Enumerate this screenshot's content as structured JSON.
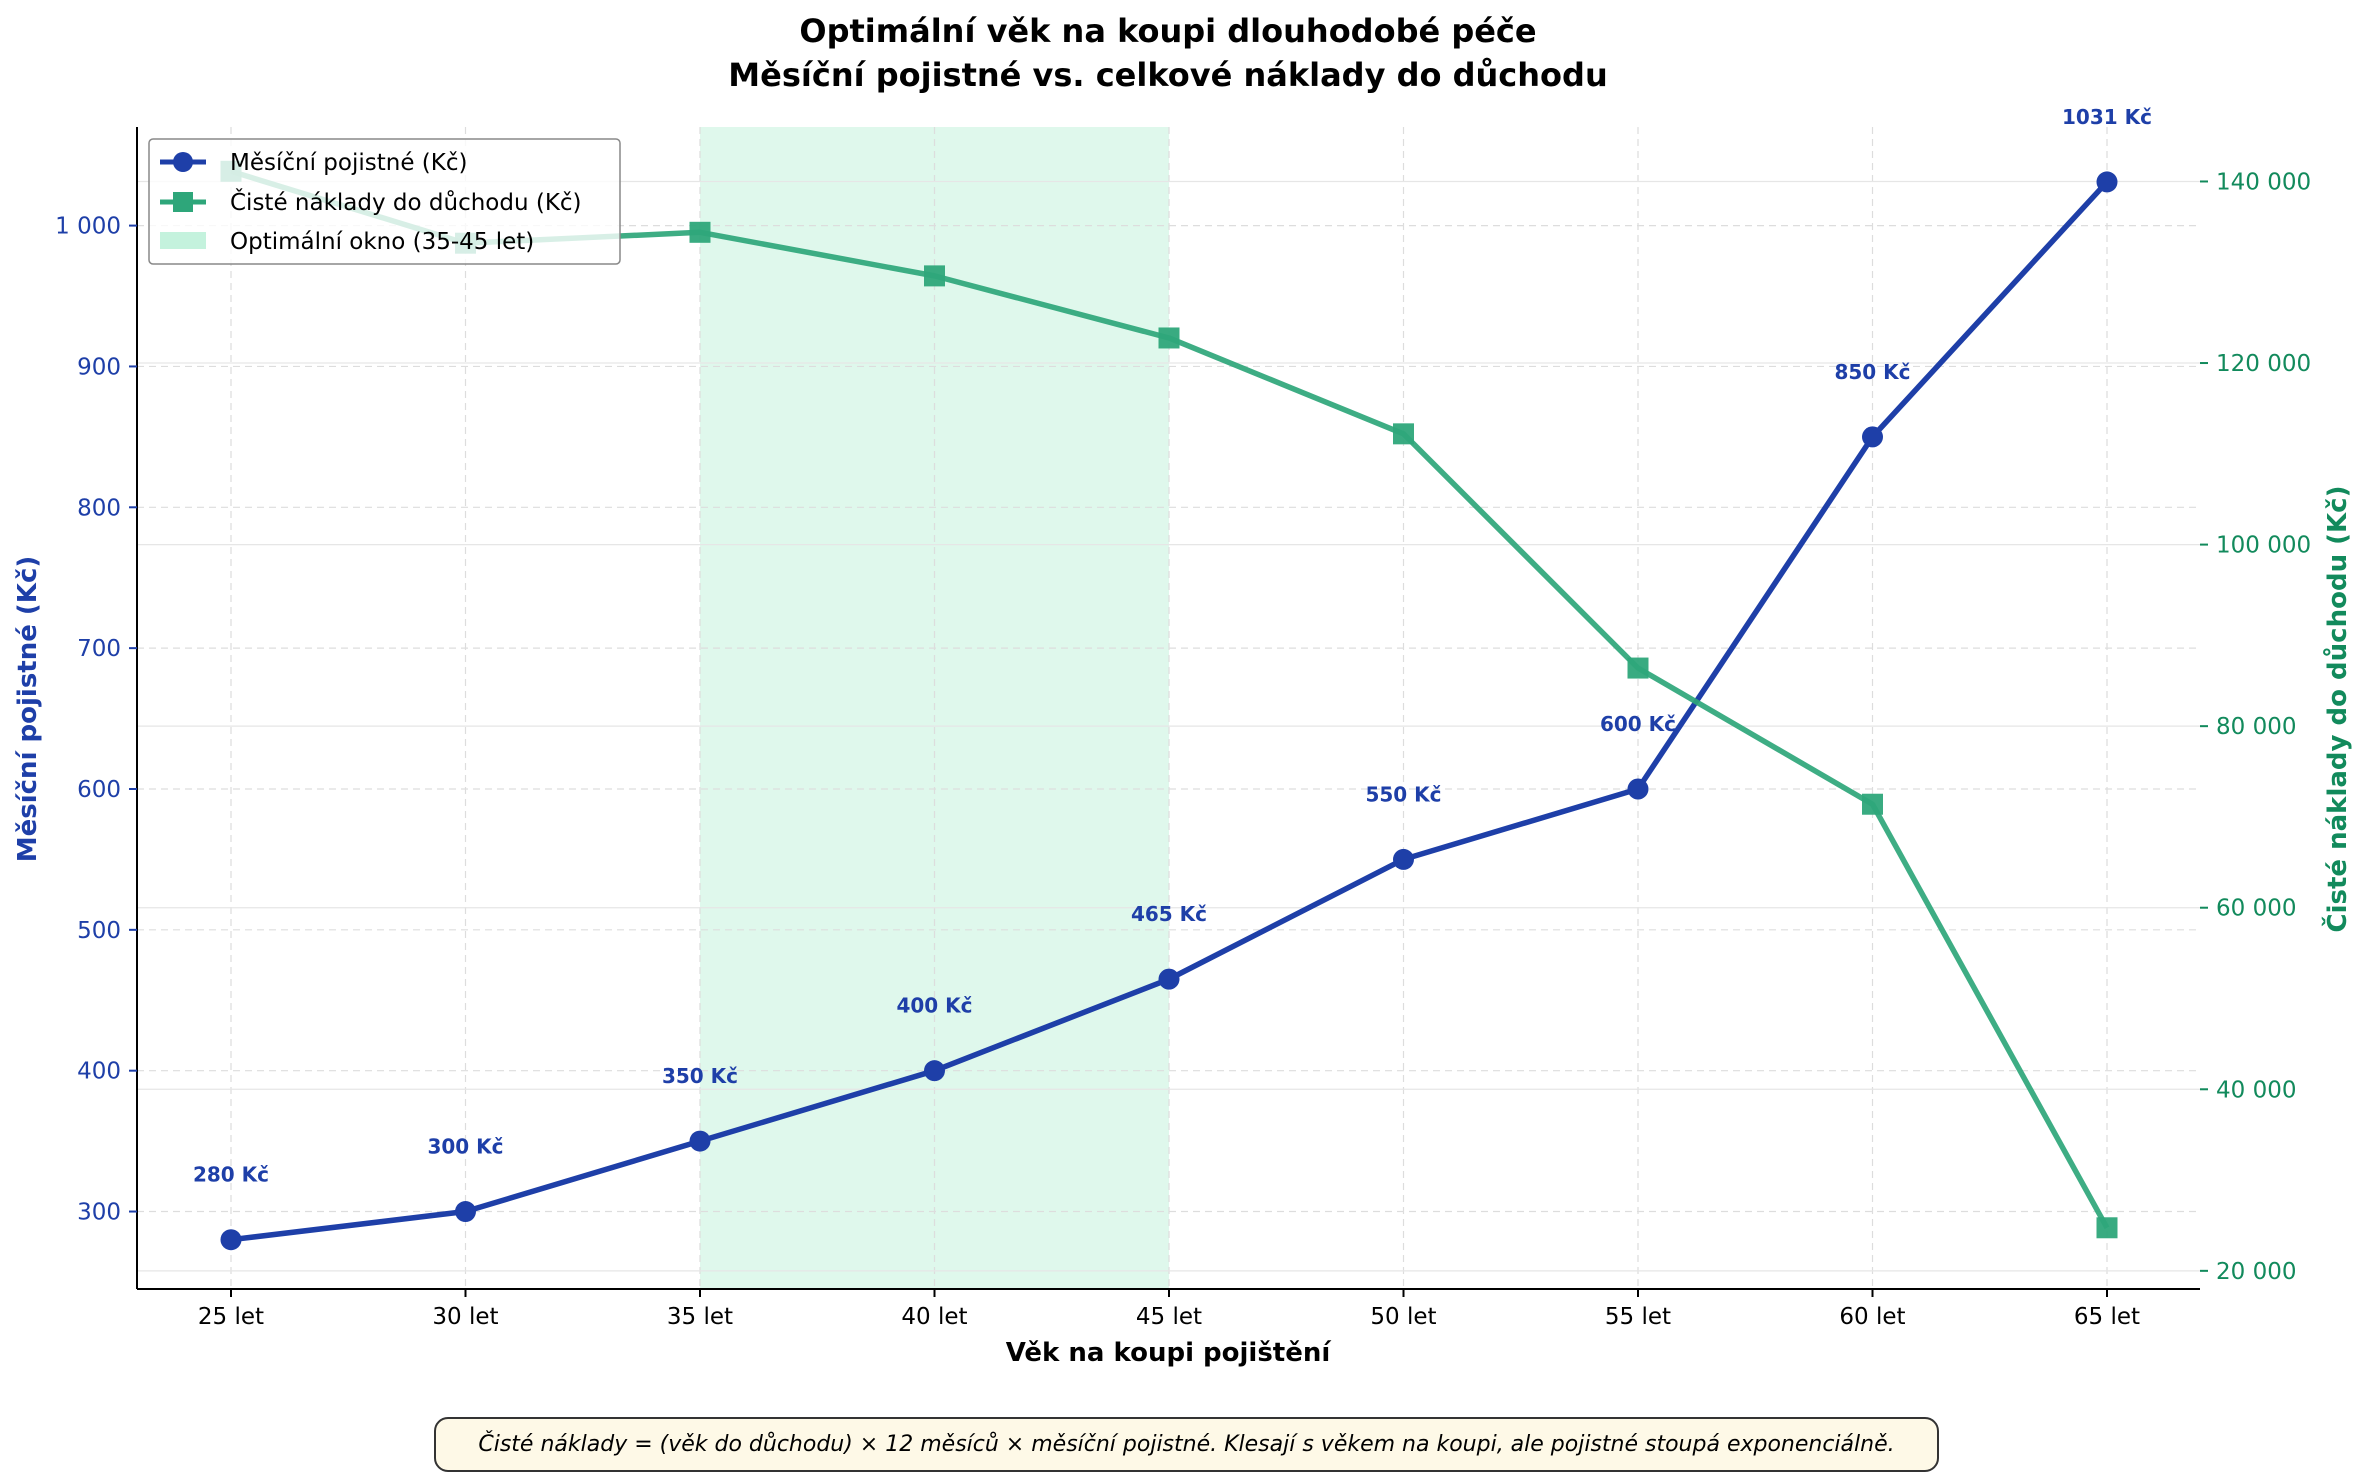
{
  "chart_data": {
    "type": "line",
    "title": "Optimální věk na koupi dlouhodobé péče",
    "subtitle": "Měsíční pojistné vs. celkové náklady do důchodu",
    "xlabel": "Věk na koupi pojištění",
    "categories": [
      "25 let",
      "30 let",
      "35 let",
      "40 let",
      "45 let",
      "50 let",
      "55 let",
      "60 let",
      "65 let"
    ],
    "y_left": {
      "label": "Měsíční pojistné (Kč)",
      "ylim": [
        245,
        1070
      ],
      "ticks": [
        300,
        400,
        500,
        600,
        700,
        800,
        900,
        1000
      ],
      "tick_labels": [
        "300",
        "400",
        "500",
        "600",
        "700",
        "800",
        "900",
        "1 000"
      ],
      "color": "#1e3fa8"
    },
    "y_right": {
      "label": "Čisté náklady do důchodu (Kč)",
      "ylim": [
        18000,
        146000
      ],
      "ticks": [
        20000,
        40000,
        60000,
        80000,
        100000,
        120000,
        140000
      ],
      "tick_labels": [
        "20 000",
        "40 000",
        "60 000",
        "80 000",
        "100 000",
        "120 000",
        "140 000"
      ],
      "color": "#128a5c"
    },
    "series": [
      {
        "name": "Měsíční pojistné (Kč)",
        "axis": "left",
        "marker": "circle",
        "color": "#1e3fa8",
        "values": [
          280,
          300,
          350,
          400,
          465,
          550,
          600,
          850,
          1031
        ],
        "data_labels": [
          "280 Kč",
          "300 Kč",
          "350 Kč",
          "400 Kč",
          "465 Kč",
          "550 Kč",
          "600 Kč",
          "850 Kč",
          "1031 Kč"
        ]
      },
      {
        "name": "Čisté náklady do důchodu (Kč)",
        "axis": "right",
        "marker": "square",
        "color": "#2ea67a",
        "values": [
          141120,
          133200,
          134400,
          129600,
          122760,
          112200,
          86400,
          71400,
          24744
        ]
      }
    ],
    "highlight": {
      "label": "Optimální okno (35-45 let)",
      "from": "35 let",
      "to": "45 let",
      "color": "#c4f2dd"
    },
    "legend_position": "upper-left",
    "grid": true,
    "note": "Čisté náklady = (věk do důchodu) × 12 měsíců × měsíční pojistné. Klesají s věkem na koupi, ale pojistné stoupá exponenciálně."
  }
}
